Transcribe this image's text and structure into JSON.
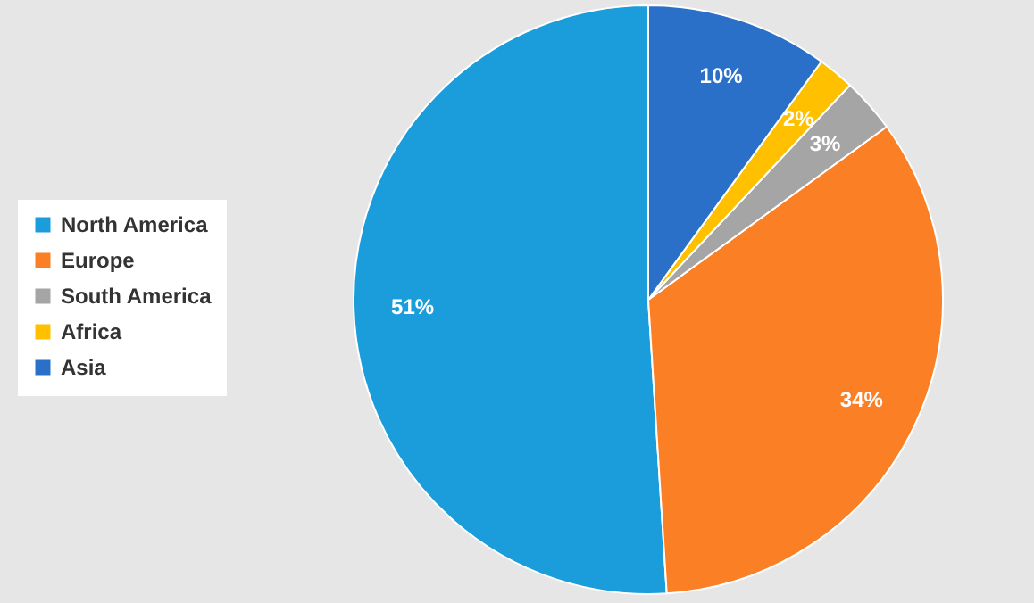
{
  "chart_data": {
    "type": "pie",
    "categories": [
      "North America",
      "Europe",
      "South America",
      "Africa",
      "Asia"
    ],
    "values": [
      51,
      34,
      3,
      2,
      10
    ],
    "value_labels": [
      "51%",
      "34%",
      "3%",
      "2%",
      "10%"
    ],
    "colors": [
      "#1b9ddb",
      "#fb7f24",
      "#a5a5a5",
      "#ffc000",
      "#2a70c9"
    ],
    "legend": "left"
  }
}
